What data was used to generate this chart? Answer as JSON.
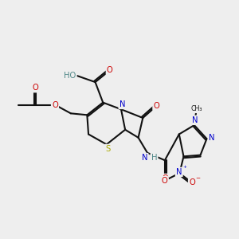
{
  "bg_color": "#eeeeee",
  "bond_color": "#111111",
  "lw": 1.5,
  "dbo": 0.065,
  "fs": 7.2,
  "colors": {
    "O": "#cc0000",
    "N": "#0000cc",
    "S": "#aaaa00",
    "H": "#508888",
    "C": "#111111"
  },
  "xlim": [
    0.0,
    10.5
  ],
  "ylim": [
    2.8,
    9.5
  ]
}
